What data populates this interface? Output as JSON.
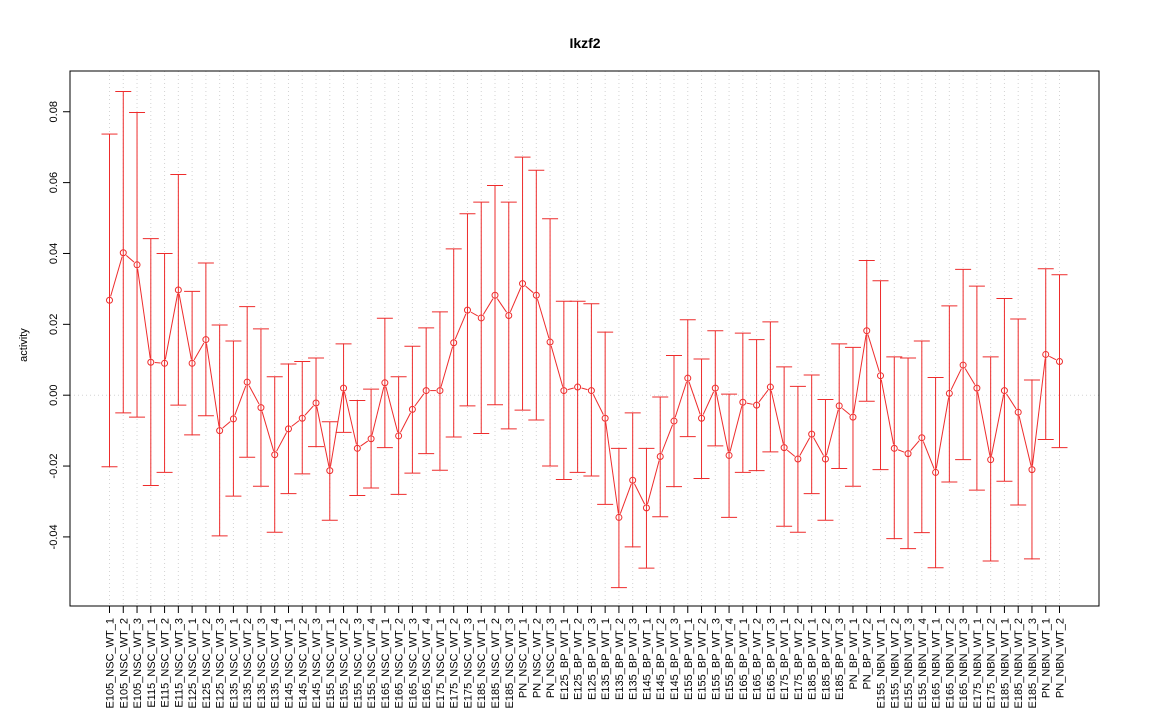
{
  "chart_data": {
    "type": "line",
    "title": "Ikzf2",
    "xlabel": "",
    "ylabel": "activity",
    "ylim": [
      -0.0595,
      0.0915
    ],
    "yticks": [
      -0.04,
      -0.02,
      0.0,
      0.02,
      0.04,
      0.06,
      0.08
    ],
    "ytick_labels": [
      "-0.04",
      "-0.02",
      "0.00",
      "0.02",
      "0.04",
      "0.06",
      "0.08"
    ],
    "grid": true,
    "error_bars": true,
    "colors": {
      "series": "#ee2c2c",
      "grid": "#d3d3d3",
      "axis": "#000000"
    },
    "categories": [
      "E105_NSC_WT_1",
      "E105_NSC_WT_2",
      "E105_NSC_WT_3",
      "E115_NSC_WT_1",
      "E115_NSC_WT_2",
      "E115_NSC_WT_3",
      "E125_NSC_WT_1",
      "E125_NSC_WT_2",
      "E125_NSC_WT_3",
      "E135_NSC_WT_1",
      "E135_NSC_WT_2",
      "E135_NSC_WT_3",
      "E135_NSC_WT_4",
      "E145_NSC_WT_1",
      "E145_NSC_WT_2",
      "E145_NSC_WT_3",
      "E155_NSC_WT_1",
      "E155_NSC_WT_2",
      "E155_NSC_WT_3",
      "E155_NSC_WT_4",
      "E165_NSC_WT_1",
      "E165_NSC_WT_2",
      "E165_NSC_WT_3",
      "E165_NSC_WT_4",
      "E175_NSC_WT_1",
      "E175_NSC_WT_2",
      "E175_NSC_WT_3",
      "E185_NSC_WT_1",
      "E185_NSC_WT_2",
      "E185_NSC_WT_3",
      "PN_NSC_WT_1",
      "PN_NSC_WT_2",
      "PN_NSC_WT_3",
      "E125_BP_WT_1",
      "E125_BP_WT_2",
      "E125_BP_WT_3",
      "E135_BP_WT_1",
      "E135_BP_WT_2",
      "E135_BP_WT_3",
      "E145_BP_WT_1",
      "E145_BP_WT_2",
      "E145_BP_WT_3",
      "E155_BP_WT_1",
      "E155_BP_WT_2",
      "E155_BP_WT_3",
      "E155_BP_WT_4",
      "E165_BP_WT_1",
      "E165_BP_WT_2",
      "E165_BP_WT_3",
      "E175_BP_WT_1",
      "E175_BP_WT_2",
      "E185_BP_WT_1",
      "E185_BP_WT_2",
      "E185_BP_WT_3",
      "PN_BP_WT_1",
      "PN_BP_WT_2",
      "E155_NBN_WT_1",
      "E155_NBN_WT_2",
      "E155_NBN_WT_3",
      "E155_NBN_WT_4",
      "E165_NBN_WT_1",
      "E165_NBN_WT_2",
      "E165_NBN_WT_3",
      "E175_NBN_WT_1",
      "E175_NBN_WT_2",
      "E185_NBN_WT_1",
      "E185_NBN_WT_2",
      "E185_NBN_WT_3",
      "PN_NBN_WT_1",
      "PN_NBN_WT_2"
    ],
    "values": [
      0.0268,
      0.0402,
      0.0368,
      0.0093,
      0.009,
      0.0297,
      0.009,
      0.0157,
      -0.01,
      -0.0067,
      0.0037,
      -0.0035,
      -0.0168,
      -0.0095,
      -0.0065,
      -0.0022,
      -0.0213,
      0.002,
      -0.015,
      -0.0123,
      0.0035,
      -0.0115,
      -0.004,
      0.0013,
      0.0013,
      0.0148,
      0.024,
      0.0218,
      0.0282,
      0.0225,
      0.0315,
      0.0282,
      0.015,
      0.0013,
      0.0023,
      0.0013,
      -0.0065,
      -0.0345,
      -0.024,
      -0.0318,
      -0.0173,
      -0.0073,
      0.0048,
      -0.0065,
      0.002,
      -0.017,
      -0.002,
      -0.0028,
      0.0023,
      -0.0148,
      -0.018,
      -0.011,
      -0.018,
      -0.003,
      -0.0062,
      0.0182,
      0.0055,
      -0.015,
      -0.0165,
      -0.012,
      -0.0218,
      0.0005,
      0.0085,
      0.002,
      -0.0182,
      0.0013,
      -0.0048,
      -0.021,
      0.0115,
      0.0095
    ],
    "upper": [
      0.0737,
      0.0857,
      0.0798,
      0.0442,
      0.04,
      0.0623,
      0.0293,
      0.0373,
      0.0198,
      0.0153,
      0.025,
      0.0187,
      0.0052,
      0.0088,
      0.0095,
      0.0105,
      -0.0075,
      0.0145,
      -0.0015,
      0.0017,
      0.0217,
      0.0052,
      0.0138,
      0.019,
      0.0235,
      0.0413,
      0.0512,
      0.0545,
      0.0592,
      0.0545,
      0.0672,
      0.0635,
      0.0498,
      0.0265,
      0.0265,
      0.0258,
      0.0178,
      -0.015,
      -0.005,
      -0.015,
      -0.0005,
      0.0112,
      0.0213,
      0.0102,
      0.0182,
      0.0003,
      0.0175,
      0.0157,
      0.0207,
      0.008,
      0.0025,
      0.0057,
      -0.0012,
      0.0145,
      0.0135,
      0.038,
      0.0323,
      0.0108,
      0.0105,
      0.0153,
      0.005,
      0.0252,
      0.0355,
      0.0308,
      0.0108,
      0.0273,
      0.0215,
      0.0043,
      0.0357,
      0.034
    ],
    "lower": [
      -0.0202,
      -0.005,
      -0.0062,
      -0.0255,
      -0.0218,
      -0.0028,
      -0.0112,
      -0.0058,
      -0.0397,
      -0.0285,
      -0.0175,
      -0.0257,
      -0.0387,
      -0.0278,
      -0.0222,
      -0.0145,
      -0.0353,
      -0.0105,
      -0.0283,
      -0.0262,
      -0.0148,
      -0.028,
      -0.022,
      -0.0165,
      -0.0212,
      -0.0118,
      -0.003,
      -0.0108,
      -0.0027,
      -0.0095,
      -0.0042,
      -0.007,
      -0.02,
      -0.0238,
      -0.0218,
      -0.0228,
      -0.0308,
      -0.0543,
      -0.0428,
      -0.0488,
      -0.0343,
      -0.0258,
      -0.0117,
      -0.0235,
      -0.0143,
      -0.0345,
      -0.0218,
      -0.0213,
      -0.016,
      -0.037,
      -0.0387,
      -0.0278,
      -0.0353,
      -0.0207,
      -0.0257,
      -0.0017,
      -0.021,
      -0.0405,
      -0.0433,
      -0.0388,
      -0.0487,
      -0.0245,
      -0.0182,
      -0.0268,
      -0.0468,
      -0.0243,
      -0.031,
      -0.0462,
      -0.0125,
      -0.0148
    ]
  }
}
